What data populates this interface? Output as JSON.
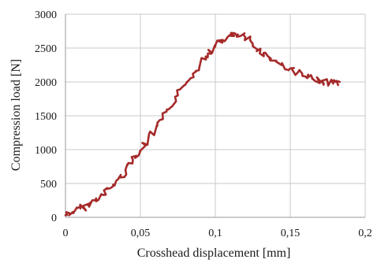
{
  "chart_data": {
    "type": "line",
    "title": "",
    "xlabel": "Crosshead displacement [mm]",
    "ylabel": "Compression load [N]",
    "xlim": [
      0,
      0.2
    ],
    "ylim": [
      0,
      3000
    ],
    "x_ticks": [
      0,
      0.05,
      0.1,
      0.15,
      0.2
    ],
    "x_tick_labels": [
      "0",
      "0,05",
      "0,1",
      "0,15",
      "0,2"
    ],
    "y_ticks": [
      0,
      500,
      1000,
      1500,
      2000,
      2500,
      3000
    ],
    "y_tick_labels": [
      "0",
      "500",
      "1000",
      "1500",
      "2000",
      "2500",
      "3000"
    ],
    "grid": true,
    "legend": "none",
    "series": [
      {
        "color": "#a52a2a",
        "x": [
          0,
          0.005,
          0.01,
          0.015,
          0.02,
          0.025,
          0.03,
          0.035,
          0.04,
          0.045,
          0.05,
          0.055,
          0.06,
          0.065,
          0.07,
          0.075,
          0.08,
          0.085,
          0.09,
          0.095,
          0.1,
          0.105,
          0.11,
          0.115,
          0.12,
          0.125,
          0.13,
          0.135,
          0.14,
          0.145,
          0.15,
          0.155,
          0.16,
          0.165,
          0.17,
          0.175,
          0.18,
          0.183
        ],
        "y": [
          30,
          80,
          130,
          180,
          250,
          330,
          430,
          560,
          700,
          850,
          980,
          1120,
          1280,
          1450,
          1620,
          1800,
          1960,
          2120,
          2280,
          2420,
          2520,
          2620,
          2680,
          2700,
          2660,
          2560,
          2460,
          2380,
          2310,
          2250,
          2200,
          2140,
          2080,
          2040,
          2010,
          1990,
          2000,
          2000
        ]
      }
    ]
  }
}
